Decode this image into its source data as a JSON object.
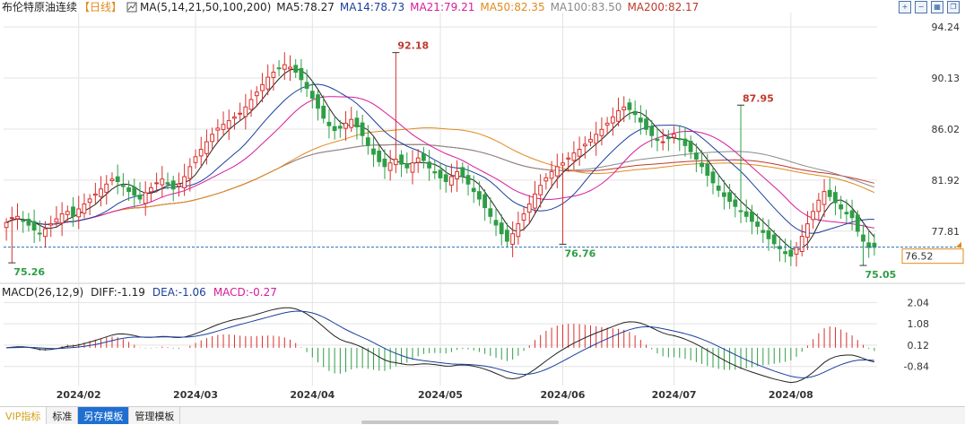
{
  "header": {
    "instrument": "布伦特原油连续",
    "period": "【日线】",
    "ma_label": "MA(5,14,21,50,100,200)",
    "ma_values": [
      {
        "label": "MA5:78.27",
        "color": "#222222"
      },
      {
        "label": "MA14:78.73",
        "color": "#1a3f9e"
      },
      {
        "label": "MA21:79.21",
        "color": "#d81b9b"
      },
      {
        "label": "MA50:82.35",
        "color": "#e08a1e"
      },
      {
        "label": "MA100:83.50",
        "color": "#8a8a8a"
      },
      {
        "label": "MA200:82.17",
        "color": "#c0392b"
      }
    ]
  },
  "macd_header": {
    "label": "MACD(26,12,9)",
    "diff": "DIFF:-1.19",
    "dea": "DEA:-1.06",
    "macd": "MACD:-0.27",
    "dea_color": "#1a3f9e",
    "macd_color": "#d81b9b"
  },
  "current_price": "76.52",
  "tabs": [
    {
      "label": "VIP指标",
      "style": "vip"
    },
    {
      "label": "标准",
      "style": ""
    },
    {
      "label": "另存模板",
      "style": "active"
    },
    {
      "label": "管理模板",
      "style": ""
    }
  ],
  "toolbar_icons": [
    "zoom-in-icon",
    "zoom-out-icon",
    "grid-icon",
    "restore-icon"
  ],
  "colors": {
    "up": "#d9302c",
    "down": "#2e9e45",
    "grid": "#e3e3e3",
    "dash": "#2a6fb0"
  },
  "chart_data": [
    {
      "type": "candlestick",
      "title": "布伦特原油连续",
      "yticks": [
        94.24,
        90.13,
        86.02,
        81.92,
        77.81
      ],
      "ylim": [
        73.9,
        95.4
      ],
      "x_labels": [
        "2024/02",
        "2024/03",
        "2024/04",
        "2024/05",
        "2024/06",
        "2024/07",
        "2024/08"
      ],
      "x_label_index": [
        13,
        34,
        55,
        78,
        100,
        120,
        141
      ],
      "annotations": [
        {
          "text": "75.26",
          "index": 1,
          "value": 75.26,
          "pos": "below"
        },
        {
          "text": "92.18",
          "index": 70,
          "value": 92.18,
          "pos": "above"
        },
        {
          "text": "76.76",
          "index": 100,
          "value": 76.76,
          "pos": "below"
        },
        {
          "text": "87.95",
          "index": 132,
          "value": 87.95,
          "pos": "above"
        },
        {
          "text": "75.05",
          "index": 154,
          "value": 75.05,
          "pos": "below"
        }
      ],
      "current_price": 76.52,
      "close": [
        78.5,
        78.9,
        79.0,
        78.6,
        78.3,
        77.9,
        77.6,
        78.0,
        78.4,
        78.8,
        79.2,
        79.4,
        79.0,
        79.6,
        80.0,
        80.4,
        80.8,
        81.2,
        81.6,
        82.0,
        81.8,
        81.4,
        81.0,
        80.7,
        80.4,
        80.9,
        81.3,
        81.7,
        82.0,
        81.6,
        81.2,
        81.6,
        82.2,
        83.0,
        83.8,
        84.4,
        85.0,
        85.6,
        86.1,
        86.4,
        86.7,
        87.0,
        87.3,
        87.8,
        88.4,
        89.0,
        89.6,
        90.2,
        90.6,
        90.9,
        91.2,
        91.0,
        90.6,
        90.0,
        89.3,
        88.5,
        87.7,
        86.9,
        86.3,
        85.9,
        86.1,
        86.5,
        86.8,
        86.2,
        85.5,
        84.7,
        84.0,
        83.4,
        83.0,
        83.3,
        83.6,
        83.2,
        82.9,
        83.3,
        83.7,
        83.5,
        82.9,
        82.5,
        82.1,
        81.8,
        82.2,
        82.6,
        82.2,
        81.6,
        81.0,
        80.4,
        79.7,
        79.0,
        78.3,
        77.6,
        77.0,
        77.6,
        78.4,
        79.2,
        80.0,
        80.8,
        81.5,
        82.1,
        82.6,
        83.0,
        83.3,
        83.7,
        84.1,
        84.4,
        84.8,
        85.2,
        85.6,
        86.0,
        86.5,
        87.0,
        87.5,
        87.8,
        87.6,
        87.2,
        86.6,
        86.0,
        85.5,
        85.1,
        85.0,
        85.3,
        85.6,
        85.2,
        84.7,
        84.2,
        83.6,
        83.0,
        82.3,
        81.7,
        81.1,
        80.6,
        80.2,
        79.8,
        79.4,
        79.0,
        78.6,
        78.2,
        77.7,
        77.2,
        76.8,
        76.4,
        76.0,
        75.8,
        76.5,
        77.4,
        78.4,
        79.4,
        80.3,
        81.0,
        80.6,
        80.1,
        79.6,
        79.2,
        78.9,
        77.8,
        77.0,
        76.5,
        76.52
      ],
      "kline_order_note": ""
    },
    {
      "type": "line",
      "title": "MACD(26,12,9)",
      "yticks": [
        2.04,
        1.08,
        0.12,
        -0.84
      ],
      "ylim": [
        -1.7,
        2.5
      ],
      "series": [
        {
          "name": "DIFF",
          "color": "#222222"
        },
        {
          "name": "DEA",
          "color": "#1a3f9e"
        },
        {
          "name": "MACD",
          "color": "#d81b9b"
        }
      ]
    }
  ]
}
